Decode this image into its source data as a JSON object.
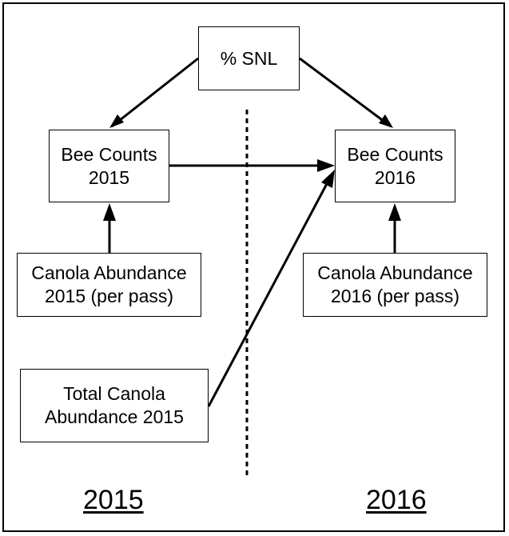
{
  "diagram": {
    "nodes": {
      "snl": {
        "lines": [
          "% SNL"
        ]
      },
      "bee_2015": {
        "lines": [
          "Bee Counts",
          "2015"
        ]
      },
      "bee_2016": {
        "lines": [
          "Bee Counts",
          "2016"
        ]
      },
      "canola_2015": {
        "lines": [
          "Canola Abundance",
          "2015 (per pass)"
        ]
      },
      "canola_2016": {
        "lines": [
          "Canola Abundance",
          "2016 (per pass)"
        ]
      },
      "total_canola_2015": {
        "lines": [
          "Total Canola",
          "Abundance 2015"
        ]
      }
    },
    "edges": [
      {
        "from": "% SNL",
        "to": "Bee Counts 2015"
      },
      {
        "from": "% SNL",
        "to": "Bee Counts 2016"
      },
      {
        "from": "Bee Counts 2015",
        "to": "Bee Counts 2016"
      },
      {
        "from": "Canola Abundance 2015 (per pass)",
        "to": "Bee Counts 2015"
      },
      {
        "from": "Canola Abundance 2016 (per pass)",
        "to": "Bee Counts 2016"
      },
      {
        "from": "Total Canola Abundance 2015",
        "to": "Bee Counts 2016"
      }
    ],
    "year_labels": {
      "left": "2015",
      "right": "2016"
    }
  }
}
